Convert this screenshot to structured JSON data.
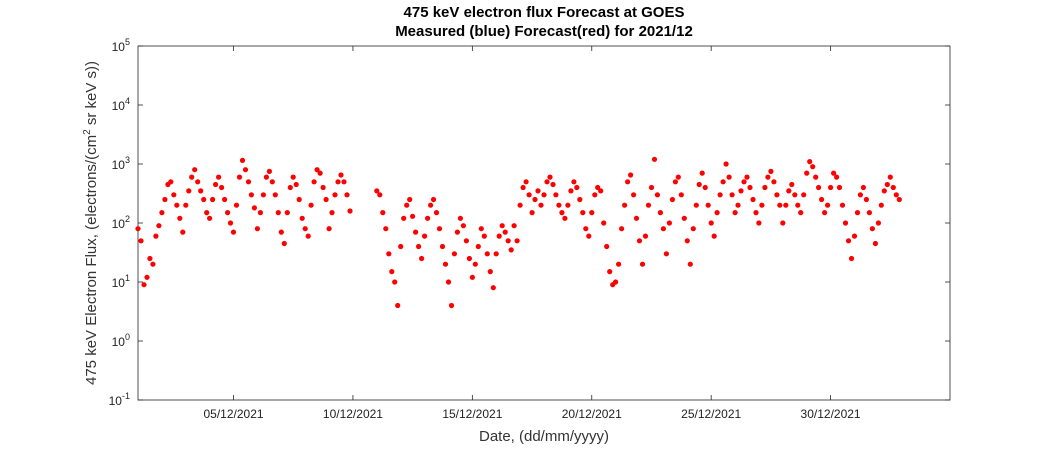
{
  "chart_data": {
    "type": "scatter",
    "title": "475 keV electron flux Forecast at GOES",
    "subtitle": "Measured (blue) Forecast(red) for 2021/12",
    "xlabel": "Date, (dd/mm/yyyy)",
    "ylabel_parts": {
      "pre": "475 keV Electron Flux, (electrons/(cm",
      "sup": "2",
      "post": " sr keV s))"
    },
    "y_scale": "log",
    "ylim": [
      0.1,
      100000
    ],
    "y_ticks": [
      {
        "mantissa": "10",
        "exp": "-1"
      },
      {
        "mantissa": "10",
        "exp": "0"
      },
      {
        "mantissa": "10",
        "exp": "1"
      },
      {
        "mantissa": "10",
        "exp": "2"
      },
      {
        "mantissa": "10",
        "exp": "3"
      },
      {
        "mantissa": "10",
        "exp": "4"
      },
      {
        "mantissa": "10",
        "exp": "5"
      }
    ],
    "xlim": [
      "2021-12-01",
      "2022-01-04"
    ],
    "x_ticks": [
      "05/12/2021",
      "10/12/2021",
      "15/12/2021",
      "20/12/2021",
      "25/12/2021",
      "30/12/2021"
    ],
    "grid": false,
    "marker_color": "#ff0000",
    "series": [
      {
        "color": "#ff0000",
        "points": [
          [
            "2021-12-01 00:00",
            80
          ],
          [
            "2021-12-01 03:00",
            50
          ],
          [
            "2021-12-01 06:00",
            9
          ],
          [
            "2021-12-01 09:00",
            12
          ],
          [
            "2021-12-01 12:00",
            25
          ],
          [
            "2021-12-01 15:00",
            20
          ],
          [
            "2021-12-01 18:00",
            60
          ],
          [
            "2021-12-01 21:00",
            90
          ],
          [
            "2021-12-02 00:00",
            150
          ],
          [
            "2021-12-02 03:00",
            250
          ],
          [
            "2021-12-02 06:00",
            450
          ],
          [
            "2021-12-02 09:00",
            500
          ],
          [
            "2021-12-02 12:00",
            300
          ],
          [
            "2021-12-02 15:00",
            200
          ],
          [
            "2021-12-02 18:00",
            120
          ],
          [
            "2021-12-02 21:00",
            70
          ],
          [
            "2021-12-03 00:00",
            200
          ],
          [
            "2021-12-03 03:00",
            350
          ],
          [
            "2021-12-03 06:00",
            600
          ],
          [
            "2021-12-03 09:00",
            800
          ],
          [
            "2021-12-03 12:00",
            500
          ],
          [
            "2021-12-03 15:00",
            350
          ],
          [
            "2021-12-03 18:00",
            250
          ],
          [
            "2021-12-03 21:00",
            150
          ],
          [
            "2021-12-04 00:00",
            120
          ],
          [
            "2021-12-04 03:00",
            250
          ],
          [
            "2021-12-04 06:00",
            450
          ],
          [
            "2021-12-04 09:00",
            600
          ],
          [
            "2021-12-04 12:00",
            400
          ],
          [
            "2021-12-04 15:00",
            250
          ],
          [
            "2021-12-04 18:00",
            150
          ],
          [
            "2021-12-04 21:00",
            100
          ],
          [
            "2021-12-05 00:00",
            70
          ],
          [
            "2021-12-05 03:00",
            200
          ],
          [
            "2021-12-05 06:00",
            600
          ],
          [
            "2021-12-05 09:00",
            1150
          ],
          [
            "2021-12-05 12:00",
            800
          ],
          [
            "2021-12-05 15:00",
            500
          ],
          [
            "2021-12-05 18:00",
            300
          ],
          [
            "2021-12-05 21:00",
            180
          ],
          [
            "2021-12-06 00:00",
            80
          ],
          [
            "2021-12-06 03:00",
            150
          ],
          [
            "2021-12-06 06:00",
            300
          ],
          [
            "2021-12-06 09:00",
            600
          ],
          [
            "2021-12-06 12:00",
            750
          ],
          [
            "2021-12-06 15:00",
            500
          ],
          [
            "2021-12-06 18:00",
            300
          ],
          [
            "2021-12-06 21:00",
            150
          ],
          [
            "2021-12-07 00:00",
            70
          ],
          [
            "2021-12-07 03:00",
            45
          ],
          [
            "2021-12-07 06:00",
            150
          ],
          [
            "2021-12-07 09:00",
            400
          ],
          [
            "2021-12-07 12:00",
            600
          ],
          [
            "2021-12-07 15:00",
            450
          ],
          [
            "2021-12-07 18:00",
            250
          ],
          [
            "2021-12-07 21:00",
            120
          ],
          [
            "2021-12-08 00:00",
            80
          ],
          [
            "2021-12-08 03:00",
            60
          ],
          [
            "2021-12-08 06:00",
            200
          ],
          [
            "2021-12-08 09:00",
            500
          ],
          [
            "2021-12-08 12:00",
            800
          ],
          [
            "2021-12-08 15:00",
            700
          ],
          [
            "2021-12-08 18:00",
            400
          ],
          [
            "2021-12-08 21:00",
            250
          ],
          [
            "2021-12-09 00:00",
            80
          ],
          [
            "2021-12-09 03:00",
            150
          ],
          [
            "2021-12-09 06:00",
            300
          ],
          [
            "2021-12-09 09:00",
            500
          ],
          [
            "2021-12-09 12:00",
            650
          ],
          [
            "2021-12-09 15:00",
            500
          ],
          [
            "2021-12-09 18:00",
            300
          ],
          [
            "2021-12-09 21:00",
            160
          ],
          [
            "2021-12-11 00:00",
            350
          ],
          [
            "2021-12-11 03:00",
            300
          ],
          [
            "2021-12-11 06:00",
            150
          ],
          [
            "2021-12-11 09:00",
            80
          ],
          [
            "2021-12-11 12:00",
            30
          ],
          [
            "2021-12-11 15:00",
            15
          ],
          [
            "2021-12-11 18:00",
            10
          ],
          [
            "2021-12-11 21:00",
            4
          ],
          [
            "2021-12-12 00:00",
            40
          ],
          [
            "2021-12-12 03:00",
            120
          ],
          [
            "2021-12-12 06:00",
            200
          ],
          [
            "2021-12-12 09:00",
            250
          ],
          [
            "2021-12-12 12:00",
            130
          ],
          [
            "2021-12-12 15:00",
            70
          ],
          [
            "2021-12-12 18:00",
            40
          ],
          [
            "2021-12-12 21:00",
            25
          ],
          [
            "2021-12-13 00:00",
            60
          ],
          [
            "2021-12-13 03:00",
            120
          ],
          [
            "2021-12-13 06:00",
            200
          ],
          [
            "2021-12-13 09:00",
            250
          ],
          [
            "2021-12-13 12:00",
            150
          ],
          [
            "2021-12-13 15:00",
            80
          ],
          [
            "2021-12-13 18:00",
            40
          ],
          [
            "2021-12-13 21:00",
            20
          ],
          [
            "2021-12-14 00:00",
            10
          ],
          [
            "2021-12-14 03:00",
            4
          ],
          [
            "2021-12-14 06:00",
            30
          ],
          [
            "2021-12-14 09:00",
            70
          ],
          [
            "2021-12-14 12:00",
            120
          ],
          [
            "2021-12-14 15:00",
            90
          ],
          [
            "2021-12-14 18:00",
            50
          ],
          [
            "2021-12-14 21:00",
            25
          ],
          [
            "2021-12-15 00:00",
            12
          ],
          [
            "2021-12-15 03:00",
            20
          ],
          [
            "2021-12-15 06:00",
            40
          ],
          [
            "2021-12-15 09:00",
            80
          ],
          [
            "2021-12-15 12:00",
            60
          ],
          [
            "2021-12-15 15:00",
            30
          ],
          [
            "2021-12-15 18:00",
            15
          ],
          [
            "2021-12-15 21:00",
            8
          ],
          [
            "2021-12-16 00:00",
            30
          ],
          [
            "2021-12-16 03:00",
            60
          ],
          [
            "2021-12-16 06:00",
            90
          ],
          [
            "2021-12-16 09:00",
            70
          ],
          [
            "2021-12-16 12:00",
            50
          ],
          [
            "2021-12-16 15:00",
            35
          ],
          [
            "2021-12-16 18:00",
            90
          ],
          [
            "2021-12-16 21:00",
            50
          ],
          [
            "2021-12-17 00:00",
            200
          ],
          [
            "2021-12-17 03:00",
            400
          ],
          [
            "2021-12-17 06:00",
            500
          ],
          [
            "2021-12-17 09:00",
            300
          ],
          [
            "2021-12-17 12:00",
            150
          ],
          [
            "2021-12-17 15:00",
            250
          ],
          [
            "2021-12-17 18:00",
            350
          ],
          [
            "2021-12-17 21:00",
            200
          ],
          [
            "2021-12-18 00:00",
            300
          ],
          [
            "2021-12-18 03:00",
            500
          ],
          [
            "2021-12-18 06:00",
            600
          ],
          [
            "2021-12-18 09:00",
            450
          ],
          [
            "2021-12-18 12:00",
            300
          ],
          [
            "2021-12-18 15:00",
            200
          ],
          [
            "2021-12-18 18:00",
            150
          ],
          [
            "2021-12-18 21:00",
            120
          ],
          [
            "2021-12-19 00:00",
            200
          ],
          [
            "2021-12-19 03:00",
            350
          ],
          [
            "2021-12-19 06:00",
            500
          ],
          [
            "2021-12-19 09:00",
            400
          ],
          [
            "2021-12-19 12:00",
            250
          ],
          [
            "2021-12-19 15:00",
            150
          ],
          [
            "2021-12-19 18:00",
            80
          ],
          [
            "2021-12-19 21:00",
            60
          ],
          [
            "2021-12-20 00:00",
            150
          ],
          [
            "2021-12-20 03:00",
            300
          ],
          [
            "2021-12-20 06:00",
            400
          ],
          [
            "2021-12-20 09:00",
            350
          ],
          [
            "2021-12-20 12:00",
            100
          ],
          [
            "2021-12-20 15:00",
            40
          ],
          [
            "2021-12-20 18:00",
            15
          ],
          [
            "2021-12-20 21:00",
            9
          ],
          [
            "2021-12-21 00:00",
            10
          ],
          [
            "2021-12-21 03:00",
            20
          ],
          [
            "2021-12-21 06:00",
            80
          ],
          [
            "2021-12-21 09:00",
            200
          ],
          [
            "2021-12-21 12:00",
            500
          ],
          [
            "2021-12-21 15:00",
            650
          ],
          [
            "2021-12-21 18:00",
            300
          ],
          [
            "2021-12-21 21:00",
            120
          ],
          [
            "2021-12-22 00:00",
            50
          ],
          [
            "2021-12-22 03:00",
            20
          ],
          [
            "2021-12-22 06:00",
            60
          ],
          [
            "2021-12-22 09:00",
            200
          ],
          [
            "2021-12-22 12:00",
            400
          ],
          [
            "2021-12-22 15:00",
            1200
          ],
          [
            "2021-12-22 18:00",
            300
          ],
          [
            "2021-12-22 21:00",
            150
          ],
          [
            "2021-12-23 00:00",
            80
          ],
          [
            "2021-12-23 03:00",
            30
          ],
          [
            "2021-12-23 06:00",
            100
          ],
          [
            "2021-12-23 09:00",
            250
          ],
          [
            "2021-12-23 12:00",
            500
          ],
          [
            "2021-12-23 15:00",
            600
          ],
          [
            "2021-12-23 18:00",
            300
          ],
          [
            "2021-12-23 21:00",
            120
          ],
          [
            "2021-12-24 00:00",
            50
          ],
          [
            "2021-12-24 03:00",
            20
          ],
          [
            "2021-12-24 06:00",
            80
          ],
          [
            "2021-12-24 09:00",
            200
          ],
          [
            "2021-12-24 12:00",
            450
          ],
          [
            "2021-12-24 15:00",
            700
          ],
          [
            "2021-12-24 18:00",
            400
          ],
          [
            "2021-12-24 21:00",
            200
          ],
          [
            "2021-12-25 00:00",
            100
          ],
          [
            "2021-12-25 03:00",
            60
          ],
          [
            "2021-12-25 06:00",
            150
          ],
          [
            "2021-12-25 09:00",
            300
          ],
          [
            "2021-12-25 12:00",
            500
          ],
          [
            "2021-12-25 15:00",
            1000
          ],
          [
            "2021-12-25 18:00",
            600
          ],
          [
            "2021-12-25 21:00",
            300
          ],
          [
            "2021-12-26 00:00",
            150
          ],
          [
            "2021-12-26 03:00",
            200
          ],
          [
            "2021-12-26 06:00",
            350
          ],
          [
            "2021-12-26 09:00",
            500
          ],
          [
            "2021-12-26 12:00",
            600
          ],
          [
            "2021-12-26 15:00",
            400
          ],
          [
            "2021-12-26 18:00",
            250
          ],
          [
            "2021-12-26 21:00",
            150
          ],
          [
            "2021-12-27 00:00",
            100
          ],
          [
            "2021-12-27 03:00",
            200
          ],
          [
            "2021-12-27 06:00",
            400
          ],
          [
            "2021-12-27 09:00",
            600
          ],
          [
            "2021-12-27 12:00",
            750
          ],
          [
            "2021-12-27 15:00",
            500
          ],
          [
            "2021-12-27 18:00",
            300
          ],
          [
            "2021-12-27 21:00",
            200
          ],
          [
            "2021-12-28 00:00",
            100
          ],
          [
            "2021-12-28 03:00",
            200
          ],
          [
            "2021-12-28 06:00",
            350
          ],
          [
            "2021-12-28 09:00",
            450
          ],
          [
            "2021-12-28 12:00",
            300
          ],
          [
            "2021-12-28 15:00",
            200
          ],
          [
            "2021-12-28 18:00",
            150
          ],
          [
            "2021-12-28 21:00",
            300
          ],
          [
            "2021-12-29 00:00",
            700
          ],
          [
            "2021-12-29 03:00",
            1100
          ],
          [
            "2021-12-29 06:00",
            900
          ],
          [
            "2021-12-29 09:00",
            600
          ],
          [
            "2021-12-29 12:00",
            400
          ],
          [
            "2021-12-29 15:00",
            250
          ],
          [
            "2021-12-29 18:00",
            150
          ],
          [
            "2021-12-29 21:00",
            200
          ],
          [
            "2021-12-30 00:00",
            400
          ],
          [
            "2021-12-30 03:00",
            700
          ],
          [
            "2021-12-30 06:00",
            600
          ],
          [
            "2021-12-30 09:00",
            400
          ],
          [
            "2021-12-30 12:00",
            200
          ],
          [
            "2021-12-30 15:00",
            100
          ],
          [
            "2021-12-30 18:00",
            50
          ],
          [
            "2021-12-30 21:00",
            25
          ],
          [
            "2021-12-31 00:00",
            60
          ],
          [
            "2021-12-31 03:00",
            150
          ],
          [
            "2021-12-31 06:00",
            300
          ],
          [
            "2021-12-31 09:00",
            400
          ],
          [
            "2021-12-31 12:00",
            250
          ],
          [
            "2021-12-31 15:00",
            150
          ],
          [
            "2021-12-31 18:00",
            80
          ],
          [
            "2021-12-31 21:00",
            45
          ],
          [
            "2022-01-01 00:00",
            100
          ],
          [
            "2022-01-01 03:00",
            200
          ],
          [
            "2022-01-01 06:00",
            350
          ],
          [
            "2022-01-01 09:00",
            450
          ],
          [
            "2022-01-01 12:00",
            600
          ],
          [
            "2022-01-01 15:00",
            400
          ],
          [
            "2022-01-01 18:00",
            300
          ],
          [
            "2022-01-01 21:00",
            250
          ]
        ]
      }
    ]
  }
}
